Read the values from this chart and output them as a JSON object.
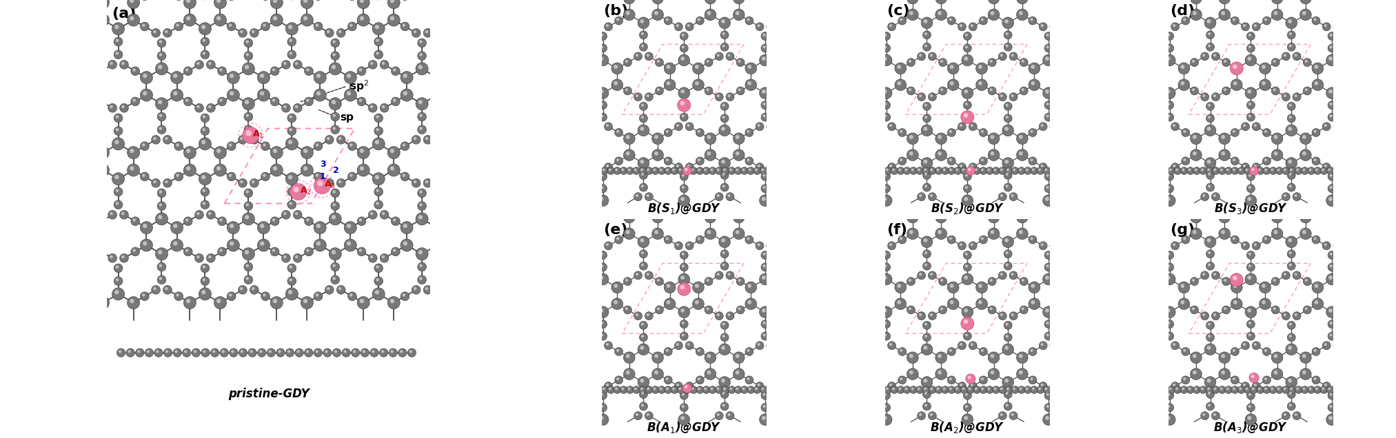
{
  "panel_labels": [
    "(a)",
    "(b)",
    "(c)",
    "(d)",
    "(e)",
    "(f)",
    "(g)"
  ],
  "panel_label_fontsize": 16,
  "panel_label_fontweight": "bold",
  "sublabels_top": [
    "B(S$_1$)@GDY",
    "B(S$_2$)@GDY",
    "B(S$_3$)@GDY"
  ],
  "sublabels_bot": [
    "B(A$_1$)@GDY",
    "B(A$_2$)@GDY",
    "B(A$_3$)@GDY"
  ],
  "sublabel_fontsize": 13,
  "pristine_label": "pristine-GDY",
  "atom_color_C": "#787878",
  "atom_color_B": "#e8799e",
  "bond_color": "#555555",
  "dashed_pink": "#ff69b4",
  "label_color_red": "#cc0000",
  "label_color_blue": "#0000cc",
  "background": "#ffffff",
  "sp2_label": "sp$^2$",
  "sp_label": "sp"
}
